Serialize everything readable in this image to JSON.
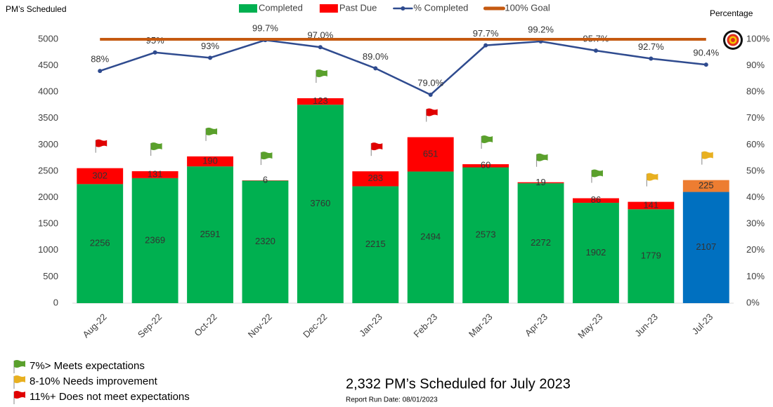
{
  "chart_data": {
    "type": "combo",
    "y_label": "PM’s Scheduled",
    "y2_label": "Percentage",
    "categories": [
      "Aug-22",
      "Sep-22",
      "Oct-22",
      "Nov-22",
      "Dec-22",
      "Jan-23",
      "Feb-23",
      "Mar-23",
      "Apr-23",
      "May-23",
      "Jun-23",
      "Jul-23"
    ],
    "series": [
      {
        "name": "Completed",
        "type": "bar",
        "color": "#00b050",
        "colors": [
          "#00b050",
          "#00b050",
          "#00b050",
          "#00b050",
          "#00b050",
          "#00b050",
          "#00b050",
          "#00b050",
          "#00b050",
          "#00b050",
          "#00b050",
          "#0070c0"
        ],
        "values": [
          2256,
          2369,
          2591,
          2320,
          3760,
          2215,
          2494,
          2573,
          2272,
          1902,
          1779,
          2107
        ]
      },
      {
        "name": "Past Due",
        "type": "bar",
        "color": "#ff0000",
        "colors": [
          "#ff0000",
          "#ff0000",
          "#ff0000",
          "#ff0000",
          "#ff0000",
          "#ff0000",
          "#ff0000",
          "#ff0000",
          "#ff0000",
          "#ff0000",
          "#ff0000",
          "#ed7d31"
        ],
        "values": [
          302,
          131,
          190,
          6,
          123,
          283,
          651,
          60,
          19,
          86,
          141,
          225
        ]
      },
      {
        "name": "% Completed",
        "type": "line",
        "axis": "y2",
        "color": "#2f4b8f",
        "markers": true,
        "values": [
          88,
          95,
          93,
          99.7,
          97.0,
          89.0,
          79.0,
          97.7,
          99.2,
          95.7,
          92.7,
          90.4
        ],
        "value_labels": [
          "88%",
          "95%",
          "93%",
          "99.7%",
          "97.0%",
          "89.0%",
          "79.0%",
          "97.7%",
          "99.2%",
          "95.7%",
          "92.7%",
          "90.4%"
        ]
      },
      {
        "name": "100% Goal",
        "type": "line",
        "axis": "y2",
        "color": "#c55a11",
        "markers": false,
        "values": [
          100,
          100,
          100,
          100,
          100,
          100,
          100,
          100,
          100,
          100,
          100,
          100
        ]
      }
    ],
    "ylim": [
      0,
      5000
    ],
    "yticks": [
      0,
      500,
      1000,
      1500,
      2000,
      2500,
      3000,
      3500,
      4000,
      4500,
      5000
    ],
    "y2lim": [
      0,
      100
    ],
    "y2ticks": [
      {
        "value": 0,
        "label": "0%"
      },
      {
        "value": 10,
        "label": "10%"
      },
      {
        "value": 20,
        "label": "20%"
      },
      {
        "value": 30,
        "label": "30%"
      },
      {
        "value": 40,
        "label": "40%"
      },
      {
        "value": 50,
        "label": "50%"
      },
      {
        "value": 60,
        "label": "60%"
      },
      {
        "value": 70,
        "label": "70%"
      },
      {
        "value": 80,
        "label": "80%"
      },
      {
        "value": 90,
        "label": "90%"
      },
      {
        "value": 100,
        "label": "100%"
      }
    ],
    "flags": [
      "#e00000",
      "#5aa02c",
      "#5aa02c",
      "#5aa02c",
      "#5aa02c",
      "#e00000",
      "#e00000",
      "#5aa02c",
      "#5aa02c",
      "#5aa02c",
      "#e8b020",
      "#e8b020"
    ],
    "flag_legend": [
      {
        "label": "7%> Meets expectations",
        "color": "#5aa02c"
      },
      {
        "label": "8-10% Needs improvement",
        "color": "#e8b020"
      },
      {
        "label": "11%+  Does not meet expectations",
        "color": "#e00000"
      }
    ]
  },
  "footer": {
    "summary": "2,332 PM’s Scheduled for July 2023",
    "run_date": "Report Run Date: 08/01/2023"
  }
}
